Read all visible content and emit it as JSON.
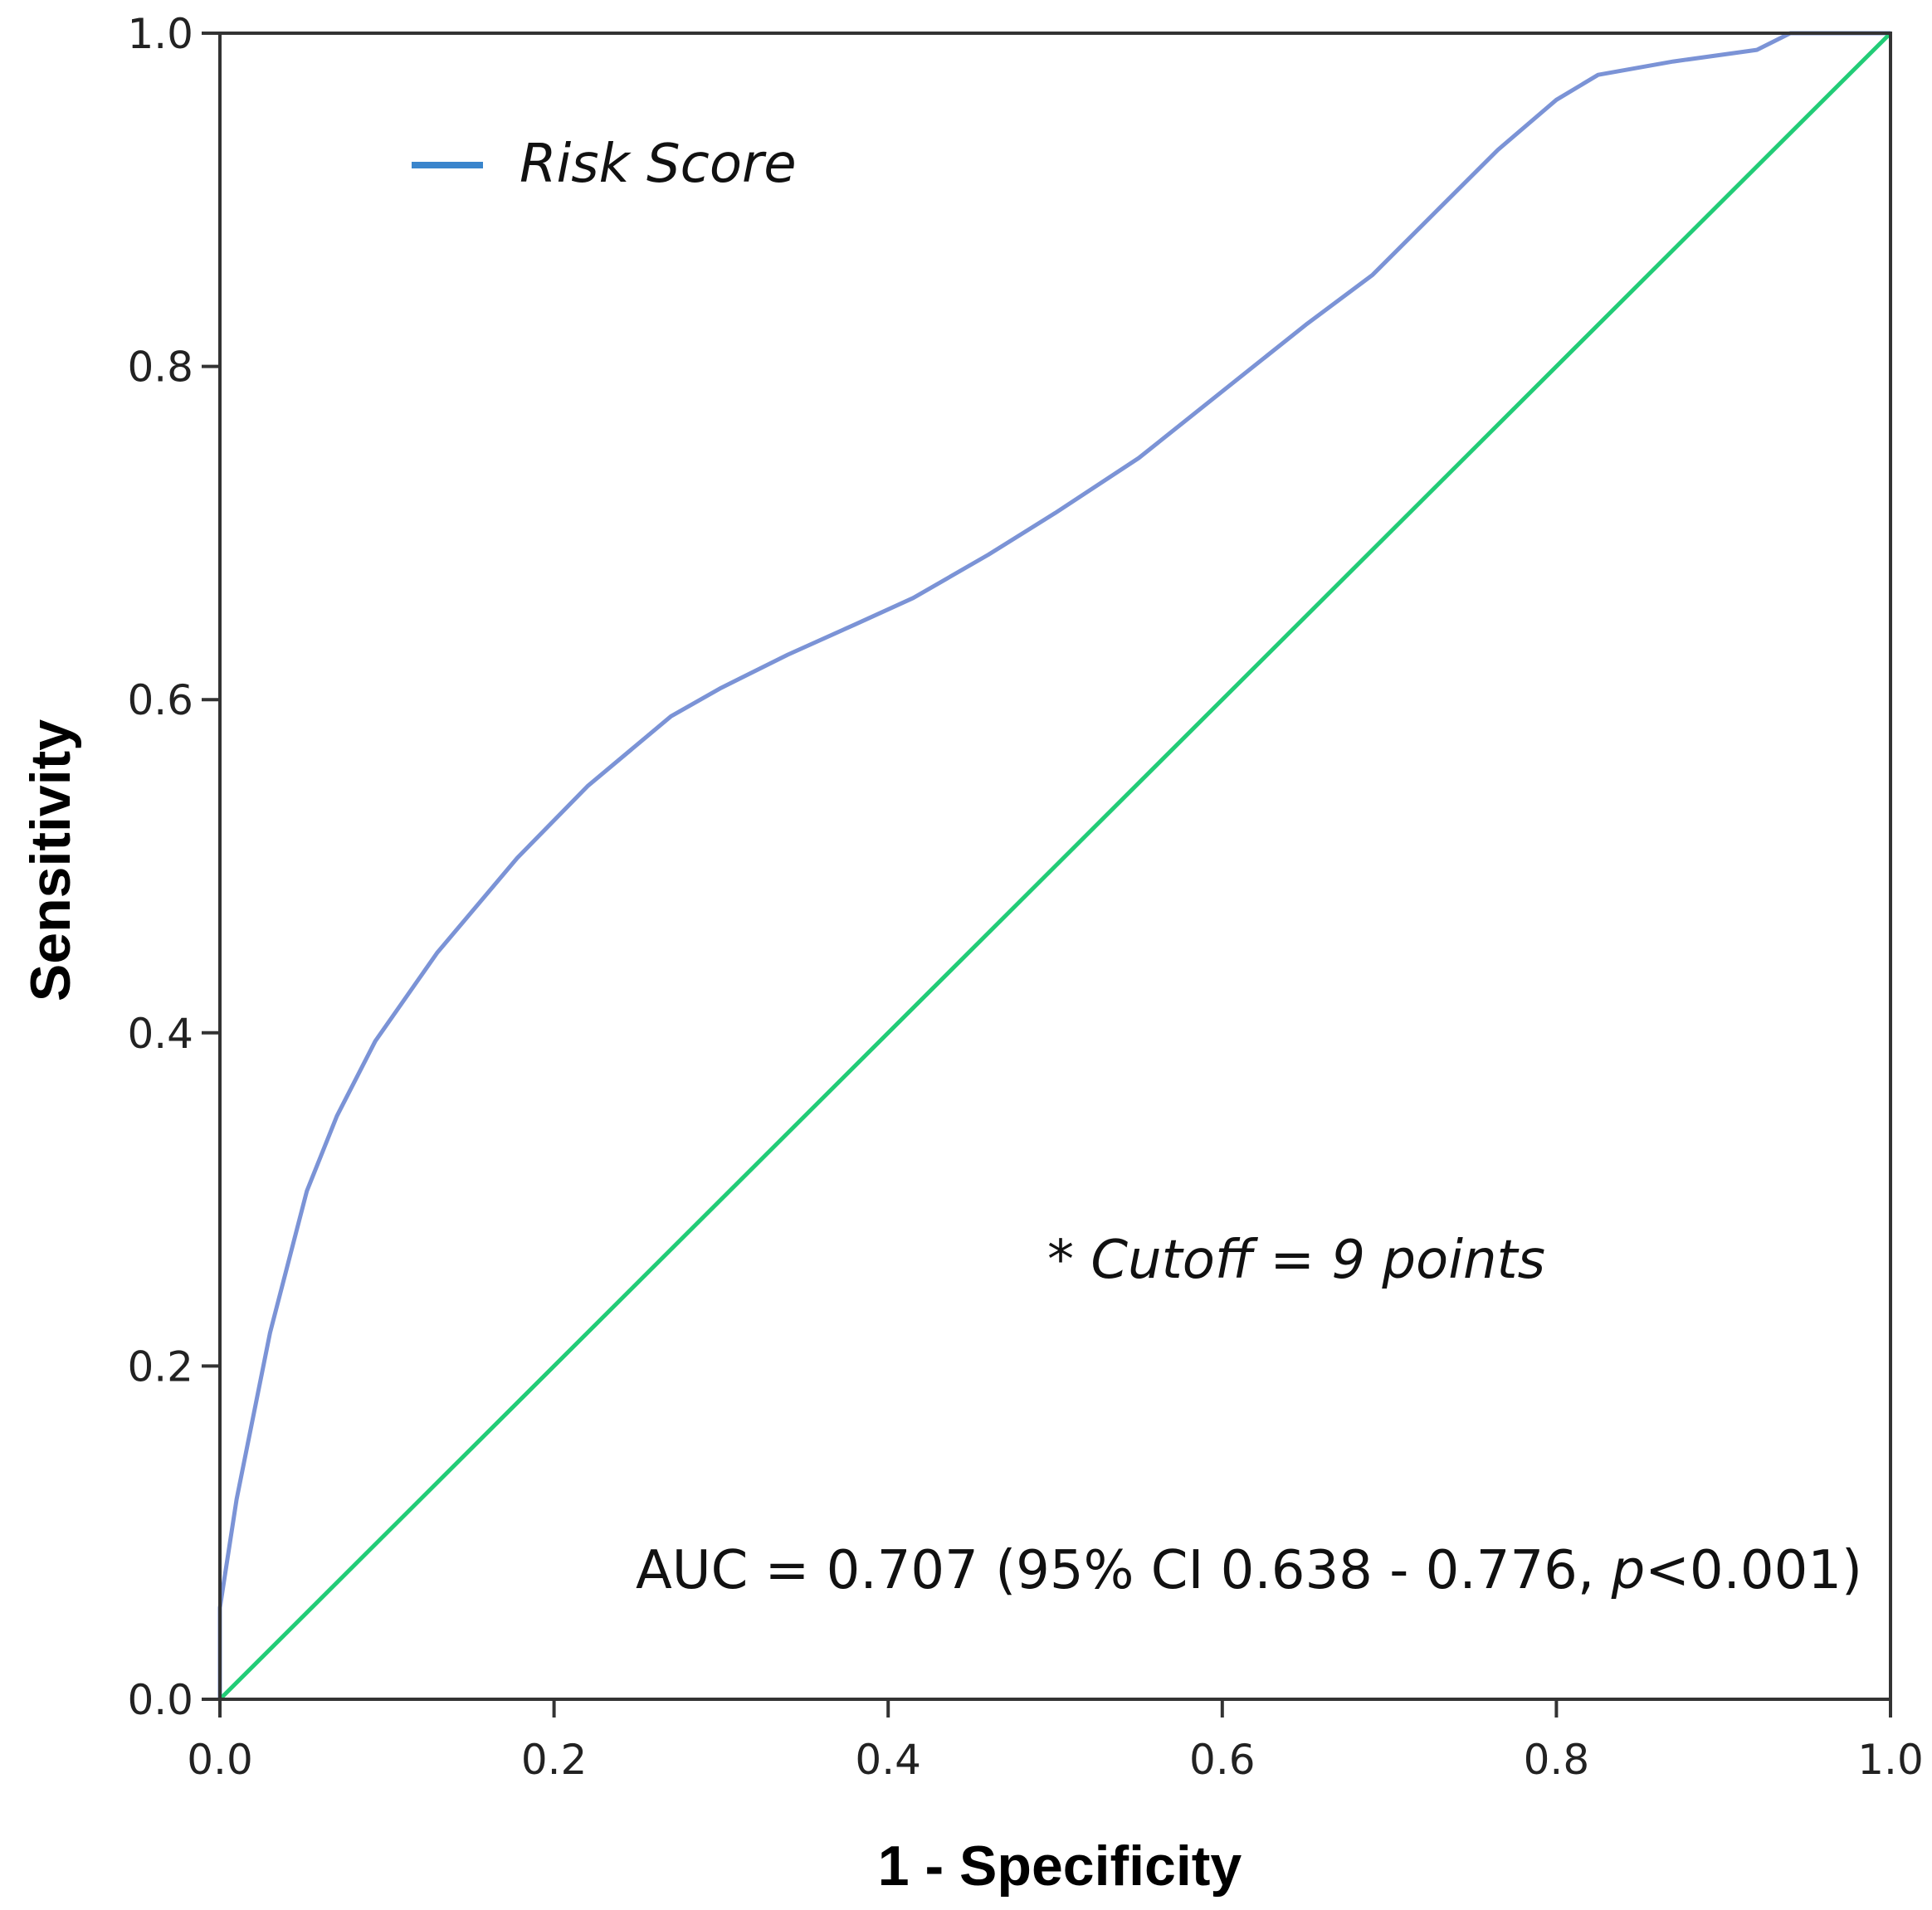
{
  "chart_data": {
    "type": "line",
    "xlabel": "1 - Specificity",
    "ylabel": "Sensitivity",
    "xlim": [
      0,
      1
    ],
    "ylim": [
      0,
      1
    ],
    "x_ticks": [
      "0.0",
      "0.2",
      "0.4",
      "0.6",
      "0.8",
      "1.0"
    ],
    "y_ticks": [
      "0.0",
      "0.2",
      "0.4",
      "0.6",
      "0.8",
      "1.0"
    ],
    "grid": false,
    "legend_position": "top-left",
    "series": [
      {
        "name": "Risk Score",
        "color": "#7b93d6",
        "legend_color": "#3a85cc",
        "x": [
          0.0,
          0.0,
          0.01,
          0.03,
          0.052,
          0.07,
          0.093,
          0.13,
          0.178,
          0.22,
          0.27,
          0.3,
          0.34,
          0.38,
          0.415,
          0.46,
          0.5,
          0.55,
          0.6,
          0.65,
          0.69,
          0.73,
          0.765,
          0.8,
          0.825,
          0.87,
          0.92,
          0.94,
          0.97,
          1.0
        ],
        "y": [
          0.0,
          0.055,
          0.12,
          0.22,
          0.305,
          0.35,
          0.395,
          0.448,
          0.505,
          0.548,
          0.59,
          0.607,
          0.627,
          0.645,
          0.661,
          0.687,
          0.712,
          0.745,
          0.785,
          0.825,
          0.855,
          0.895,
          0.93,
          0.96,
          0.975,
          0.983,
          0.99,
          1.0,
          1.0,
          1.0
        ]
      },
      {
        "color": "#22cc77",
        "x": [
          0,
          1
        ],
        "y": [
          0,
          1
        ]
      }
    ],
    "annotations": {
      "cutoff": {
        "prefix": "* ",
        "italic": "Cutoff = 9 points"
      },
      "auc": {
        "before": "AUC = 0.707 (95% CI 0.638 - 0.776, ",
        "italic": "p",
        "after": "<0.001)"
      }
    }
  }
}
